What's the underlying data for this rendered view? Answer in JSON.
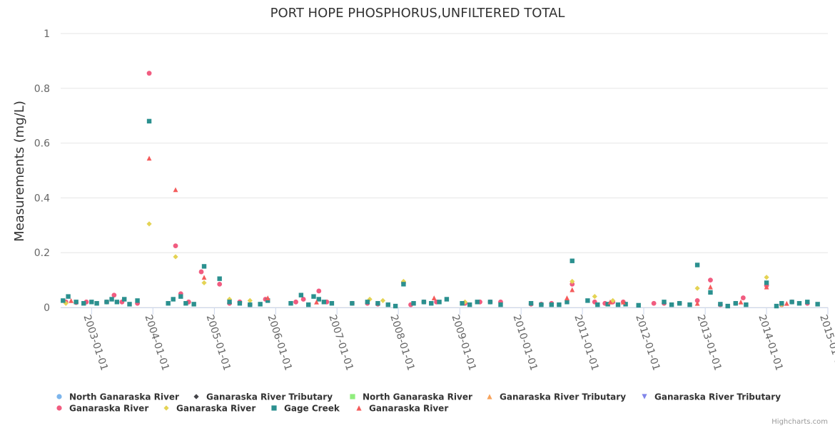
{
  "chart_data": {
    "type": "scatter",
    "title": "PORT HOPE PHOSPHORUS,UNFILTERED TOTAL",
    "xlabel": "",
    "ylabel": "Measurements (mg/L)",
    "ylim": [
      0,
      1
    ],
    "yticks": [
      "0",
      "0.2",
      "0.4",
      "0.6",
      "0.8",
      "1"
    ],
    "xticks": [
      "2003-01-01",
      "2004-01-01",
      "2005-01-01",
      "2006-01-01",
      "2007-01-01",
      "2008-01-01",
      "2009-01-01",
      "2010-01-01",
      "2011-01-01",
      "2012-01-01",
      "2013-01-01",
      "2014-01-01",
      "2015-01-01"
    ],
    "xlim": [
      "2002-07-01",
      "2015-01-01"
    ],
    "grid": true,
    "legend_position": "bottom",
    "colors": {
      "blue": "#7cb5ec",
      "black": "#434348",
      "green": "#90ed7d",
      "orange": "#f7a35c",
      "purple": "#8085e9",
      "pink": "#f15c80",
      "yellow": "#e4d354",
      "teal": "#2b908f",
      "red": "#f45b5b"
    },
    "series": [
      {
        "name": "North Ganaraska River",
        "color": "#7cb5ec",
        "symbol": "circle",
        "points": []
      },
      {
        "name": "Ganaraska River Tributary",
        "color": "#434348",
        "symbol": "diamond",
        "points": []
      },
      {
        "name": "North Ganaraska River",
        "color": "#90ed7d",
        "symbol": "square",
        "points": []
      },
      {
        "name": "Ganaraska River Tributary",
        "color": "#f7a35c",
        "symbol": "triangle",
        "points": []
      },
      {
        "name": "Ganaraska River Tributary",
        "color": "#8085e9",
        "symbol": "triangle-down",
        "points": []
      },
      {
        "name": "Ganaraska River",
        "color": "#f15c80",
        "symbol": "circle",
        "points": [
          [
            "2002-08-01",
            0.02
          ],
          [
            "2002-10-01",
            0.018
          ],
          [
            "2002-12-01",
            0.02
          ],
          [
            "2003-04-01",
            0.02
          ],
          [
            "2003-05-15",
            0.045
          ],
          [
            "2003-07-01",
            0.02
          ],
          [
            "2003-10-01",
            0.015
          ],
          [
            "2003-12-10",
            0.855
          ],
          [
            "2004-05-15",
            0.225
          ],
          [
            "2004-06-15",
            0.05
          ],
          [
            "2004-08-01",
            0.02
          ],
          [
            "2004-10-15",
            0.13
          ],
          [
            "2005-02-01",
            0.085
          ],
          [
            "2005-04-01",
            0.015
          ],
          [
            "2005-06-01",
            0.02
          ],
          [
            "2005-08-01",
            0.01
          ],
          [
            "2005-11-01",
            0.03
          ],
          [
            "2006-05-01",
            0.02
          ],
          [
            "2006-06-15",
            0.03
          ],
          [
            "2006-09-15",
            0.06
          ],
          [
            "2006-11-01",
            0.02
          ],
          [
            "2007-04-01",
            0.015
          ],
          [
            "2007-07-01",
            0.015
          ],
          [
            "2007-09-01",
            0.012
          ],
          [
            "2008-02-01",
            0.09
          ],
          [
            "2008-03-15",
            0.01
          ],
          [
            "2008-06-01",
            0.02
          ],
          [
            "2008-08-15",
            0.02
          ],
          [
            "2009-02-01",
            0.015
          ],
          [
            "2009-05-01",
            0.02
          ],
          [
            "2009-07-01",
            0.02
          ],
          [
            "2009-09-01",
            0.02
          ],
          [
            "2010-03-01",
            0.012
          ],
          [
            "2010-05-01",
            0.012
          ],
          [
            "2010-07-01",
            0.015
          ],
          [
            "2010-11-01",
            0.085
          ],
          [
            "2011-03-15",
            0.02
          ],
          [
            "2011-05-15",
            0.015
          ],
          [
            "2011-07-01",
            0.02
          ],
          [
            "2011-09-01",
            0.02
          ],
          [
            "2012-03-01",
            0.015
          ],
          [
            "2012-05-01",
            0.015
          ],
          [
            "2012-08-01",
            0.015
          ],
          [
            "2012-11-15",
            0.025
          ],
          [
            "2013-02-01",
            0.1
          ],
          [
            "2013-04-01",
            0.01
          ],
          [
            "2013-07-01",
            0.015
          ],
          [
            "2013-08-15",
            0.035
          ],
          [
            "2014-01-01",
            0.08
          ],
          [
            "2014-04-01",
            0.01
          ],
          [
            "2014-06-01",
            0.02
          ],
          [
            "2014-09-01",
            0.015
          ]
        ]
      },
      {
        "name": "Ganaraska River",
        "color": "#e4d354",
        "symbol": "diamond",
        "points": [
          [
            "2002-08-01",
            0.015
          ],
          [
            "2003-12-10",
            0.305
          ],
          [
            "2004-05-15",
            0.185
          ],
          [
            "2004-11-01",
            0.09
          ],
          [
            "2005-04-01",
            0.03
          ],
          [
            "2005-08-01",
            0.025
          ],
          [
            "2007-07-15",
            0.03
          ],
          [
            "2007-10-01",
            0.025
          ],
          [
            "2008-02-01",
            0.095
          ],
          [
            "2009-02-01",
            0.02
          ],
          [
            "2010-11-01",
            0.095
          ],
          [
            "2011-03-15",
            0.04
          ],
          [
            "2011-07-01",
            0.025
          ],
          [
            "2012-11-15",
            0.07
          ],
          [
            "2014-01-01",
            0.11
          ],
          [
            "2014-04-01",
            0.01
          ]
        ]
      },
      {
        "name": "Gage Creek",
        "color": "#2b908f",
        "symbol": "square",
        "points": [
          [
            "2002-07-15",
            0.025
          ],
          [
            "2002-08-15",
            0.04
          ],
          [
            "2002-10-01",
            0.02
          ],
          [
            "2002-11-15",
            0.015
          ],
          [
            "2003-01-01",
            0.02
          ],
          [
            "2003-02-01",
            0.015
          ],
          [
            "2003-04-01",
            0.02
          ],
          [
            "2003-05-01",
            0.03
          ],
          [
            "2003-06-01",
            0.02
          ],
          [
            "2003-07-15",
            0.03
          ],
          [
            "2003-08-15",
            0.012
          ],
          [
            "2003-10-01",
            0.025
          ],
          [
            "2003-12-10",
            0.68
          ],
          [
            "2004-04-01",
            0.015
          ],
          [
            "2004-05-01",
            0.03
          ],
          [
            "2004-06-15",
            0.04
          ],
          [
            "2004-07-15",
            0.015
          ],
          [
            "2004-09-01",
            0.012
          ],
          [
            "2004-11-01",
            0.15
          ],
          [
            "2005-02-01",
            0.105
          ],
          [
            "2005-04-01",
            0.02
          ],
          [
            "2005-06-01",
            0.015
          ],
          [
            "2005-08-01",
            0.01
          ],
          [
            "2005-10-01",
            0.012
          ],
          [
            "2005-11-15",
            0.025
          ],
          [
            "2006-04-01",
            0.015
          ],
          [
            "2006-06-01",
            0.045
          ],
          [
            "2006-07-15",
            0.01
          ],
          [
            "2006-08-15",
            0.04
          ],
          [
            "2006-09-15",
            0.03
          ],
          [
            "2006-10-15",
            0.02
          ],
          [
            "2006-12-01",
            0.015
          ],
          [
            "2007-04-01",
            0.015
          ],
          [
            "2007-07-01",
            0.02
          ],
          [
            "2007-09-01",
            0.015
          ],
          [
            "2007-11-01",
            0.01
          ],
          [
            "2007-12-15",
            0.005
          ],
          [
            "2008-02-01",
            0.085
          ],
          [
            "2008-04-01",
            0.015
          ],
          [
            "2008-06-01",
            0.02
          ],
          [
            "2008-07-15",
            0.015
          ],
          [
            "2008-09-01",
            0.02
          ],
          [
            "2008-10-15",
            0.03
          ],
          [
            "2009-01-15",
            0.015
          ],
          [
            "2009-03-01",
            0.01
          ],
          [
            "2009-04-15",
            0.02
          ],
          [
            "2009-07-01",
            0.02
          ],
          [
            "2009-09-01",
            0.01
          ],
          [
            "2010-03-01",
            0.015
          ],
          [
            "2010-05-01",
            0.01
          ],
          [
            "2010-07-01",
            0.01
          ],
          [
            "2010-08-15",
            0.01
          ],
          [
            "2010-10-01",
            0.02
          ],
          [
            "2010-11-01",
            0.17
          ],
          [
            "2011-02-01",
            0.025
          ],
          [
            "2011-04-01",
            0.01
          ],
          [
            "2011-06-01",
            0.012
          ],
          [
            "2011-08-01",
            0.01
          ],
          [
            "2011-09-15",
            0.012
          ],
          [
            "2011-12-01",
            0.008
          ],
          [
            "2012-05-01",
            0.02
          ],
          [
            "2012-06-15",
            0.01
          ],
          [
            "2012-08-01",
            0.015
          ],
          [
            "2012-10-01",
            0.01
          ],
          [
            "2012-11-15",
            0.155
          ],
          [
            "2013-02-01",
            0.055
          ],
          [
            "2013-04-01",
            0.012
          ],
          [
            "2013-05-15",
            0.005
          ],
          [
            "2013-07-01",
            0.015
          ],
          [
            "2013-09-01",
            0.01
          ],
          [
            "2014-01-01",
            0.09
          ],
          [
            "2014-03-01",
            0.005
          ],
          [
            "2014-04-01",
            0.015
          ],
          [
            "2014-06-01",
            0.02
          ],
          [
            "2014-07-15",
            0.015
          ],
          [
            "2014-09-01",
            0.02
          ],
          [
            "2014-11-01",
            0.012
          ]
        ]
      },
      {
        "name": "Ganaraska River",
        "color": "#f45b5b",
        "symbol": "triangle",
        "points": [
          [
            "2002-09-01",
            0.025
          ],
          [
            "2003-12-10",
            0.545
          ],
          [
            "2004-05-15",
            0.43
          ],
          [
            "2004-11-01",
            0.11
          ],
          [
            "2005-11-15",
            0.035
          ],
          [
            "2006-09-01",
            0.02
          ],
          [
            "2008-08-01",
            0.035
          ],
          [
            "2010-10-01",
            0.035
          ],
          [
            "2010-11-01",
            0.065
          ],
          [
            "2011-06-15",
            0.02
          ],
          [
            "2011-09-01",
            0.02
          ],
          [
            "2012-11-15",
            0.015
          ],
          [
            "2013-02-01",
            0.075
          ],
          [
            "2013-08-01",
            0.02
          ],
          [
            "2014-01-01",
            0.075
          ],
          [
            "2014-05-01",
            0.015
          ]
        ]
      }
    ]
  },
  "legend": {
    "items": [
      {
        "label": "North Ganaraska River",
        "color": "#7cb5ec",
        "symbol": "circle"
      },
      {
        "label": "Ganaraska River Tributary",
        "color": "#434348",
        "symbol": "diamond"
      },
      {
        "label": "North Ganaraska River",
        "color": "#90ed7d",
        "symbol": "square"
      },
      {
        "label": "Ganaraska River Tributary",
        "color": "#f7a35c",
        "symbol": "triangle"
      },
      {
        "label": "Ganaraska River Tributary",
        "color": "#8085e9",
        "symbol": "triangle-down"
      },
      {
        "label": "Ganaraska River",
        "color": "#f15c80",
        "symbol": "circle"
      },
      {
        "label": "Ganaraska River",
        "color": "#e4d354",
        "symbol": "diamond"
      },
      {
        "label": "Gage Creek",
        "color": "#2b908f",
        "symbol": "square"
      },
      {
        "label": "Ganaraska River",
        "color": "#f45b5b",
        "symbol": "triangle"
      }
    ]
  },
  "credits": "Highcharts.com"
}
